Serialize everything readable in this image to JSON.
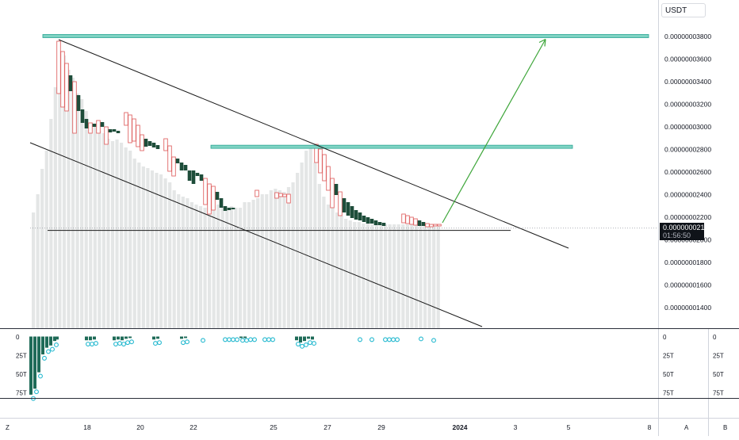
{
  "header": {
    "currency": "USDT"
  },
  "price_tag": {
    "value": "0.00000002100",
    "countdown": "01:56:50"
  },
  "colors": {
    "up_border": "#e06666",
    "down_fill": "#1e4d3a",
    "volume": "#e4e6e6",
    "zone": "#7fd3c3",
    "zone_border": "#2aa594",
    "target_arrow": "#3ea63a",
    "trend": "#1a1a1a",
    "osc_bar": "#1f6b58",
    "osc_dot": "#22b8cf"
  },
  "chart_data": {
    "type": "candlestick",
    "title": "",
    "y_axis": {
      "ticks": [
        "0.00000003800",
        "0.00000003600",
        "0.00000003400",
        "0.00000003200",
        "0.00000003000",
        "0.00000002800",
        "0.00000002600",
        "0.00000002400",
        "0.00000002200",
        "0.00000002000",
        "0.00000001800",
        "0.00000001600",
        "0.00000001400"
      ],
      "range": [
        1.28e-08,
        3.87e-08
      ]
    },
    "x_axis": {
      "ticks": [
        "18",
        "20",
        "22",
        "25",
        "27",
        "29",
        "2024",
        "3",
        "5",
        "8"
      ]
    },
    "last_price": 2.1e-08,
    "support_level": 2.08e-08,
    "resistance_zones": [
      3.8e-08,
      2.82e-08
    ],
    "target_price": 3.8e-08,
    "oscillator": {
      "ticks": [
        "0",
        "25T",
        "50T",
        "75T"
      ],
      "range": [
        0,
        80
      ]
    },
    "scale_buttons": [
      "Z",
      "A",
      "B"
    ]
  }
}
